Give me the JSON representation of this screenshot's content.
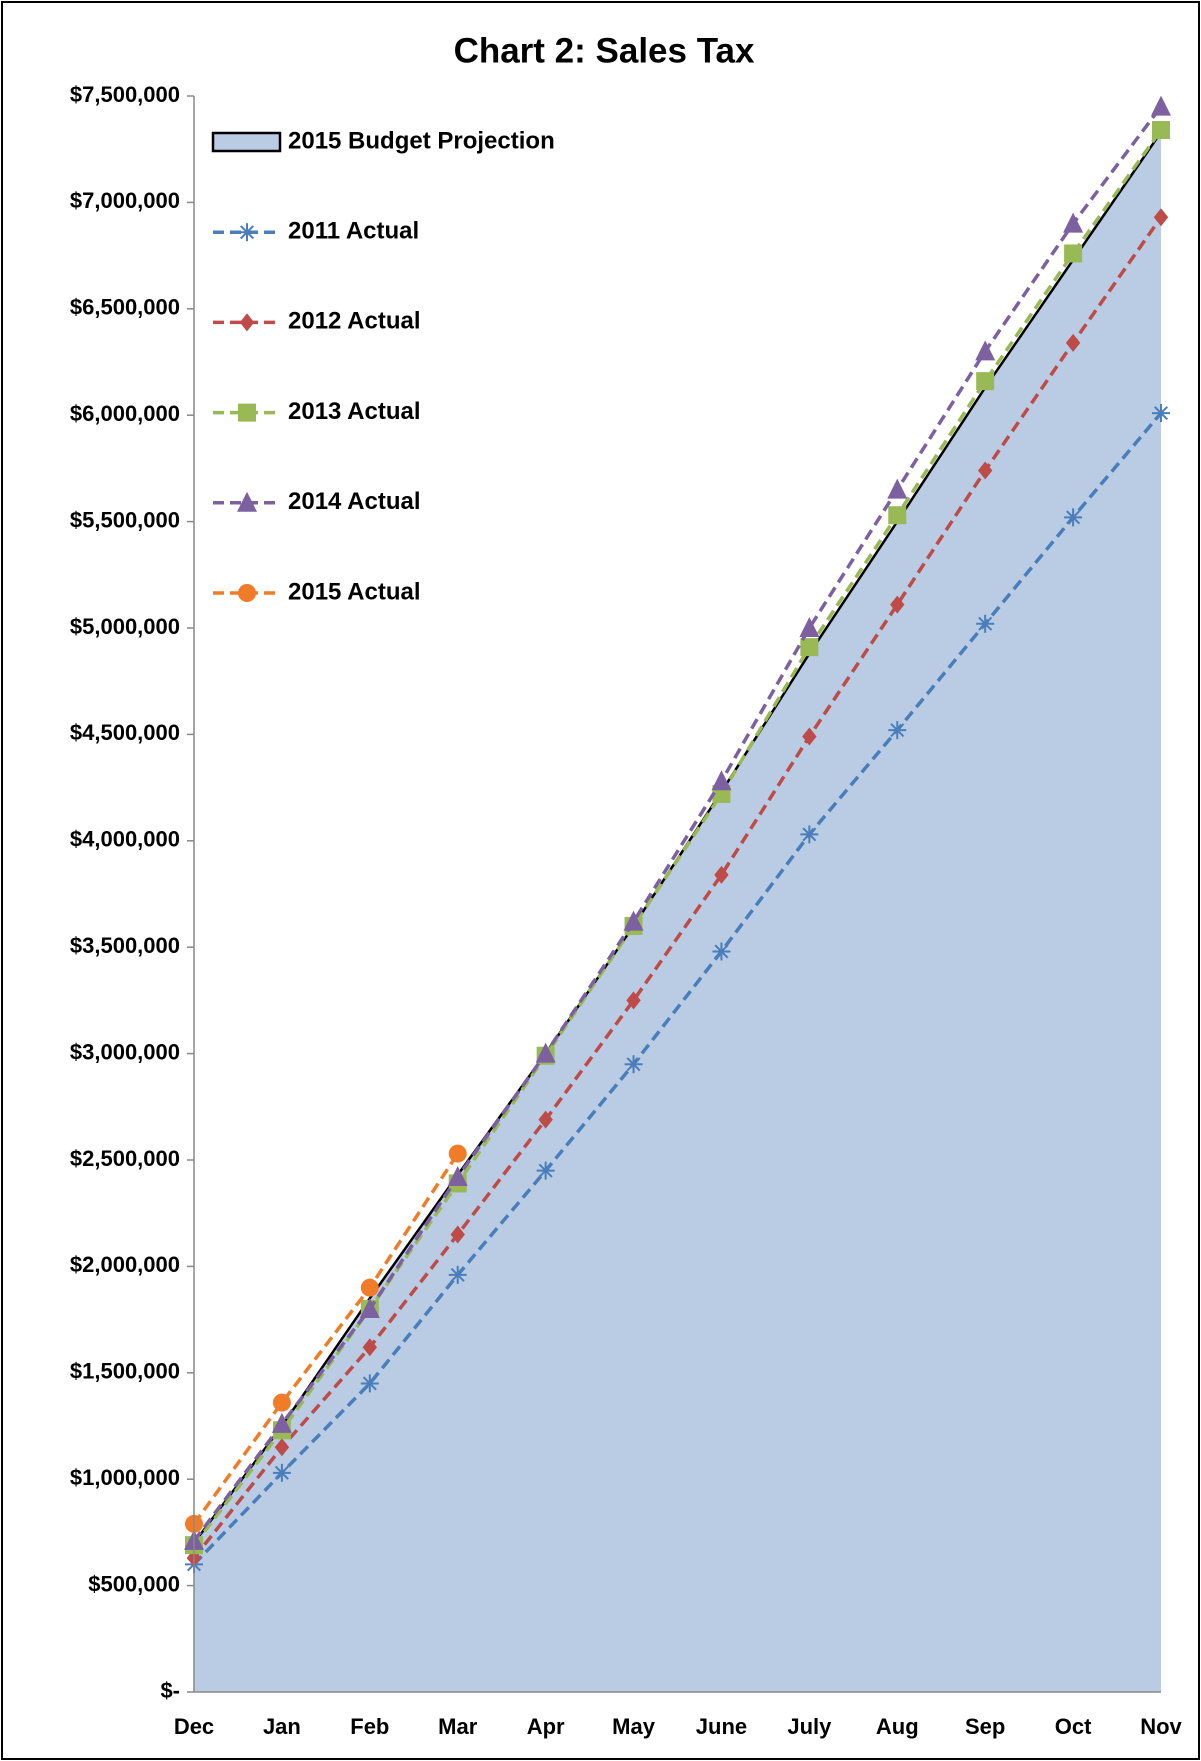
{
  "chart_data": {
    "type": "line",
    "title": "Chart 2: Sales Tax",
    "categories": [
      "Dec",
      "Jan",
      "Feb",
      "Mar",
      "Apr",
      "May",
      "June",
      "July",
      "Aug",
      "Sep",
      "Oct",
      "Nov"
    ],
    "series": [
      {
        "name": "2015 Budget Projection",
        "type": "area",
        "color": "#b9cce4",
        "values": [
          700000,
          1250000,
          1850000,
          2430000,
          3000000,
          3600000,
          4230000,
          4880000,
          5500000,
          6130000,
          6730000,
          7330000
        ]
      },
      {
        "name": "2011 Actual",
        "color": "#4a7ebb",
        "marker": "asterisk",
        "values": [
          600000,
          1030000,
          1450000,
          1960000,
          2450000,
          2950000,
          3480000,
          4030000,
          4520000,
          5020000,
          5520000,
          6010000
        ]
      },
      {
        "name": "2012 Actual",
        "color": "#be4b48",
        "marker": "diamond",
        "values": [
          630000,
          1150000,
          1620000,
          2150000,
          2690000,
          3250000,
          3840000,
          4490000,
          5110000,
          5740000,
          6340000,
          6930000
        ]
      },
      {
        "name": "2013 Actual",
        "color": "#98b954",
        "marker": "square",
        "values": [
          690000,
          1230000,
          1800000,
          2390000,
          2990000,
          3600000,
          4220000,
          4910000,
          5530000,
          6160000,
          6760000,
          7340000
        ]
      },
      {
        "name": "2014 Actual",
        "color": "#7d60a0",
        "marker": "triangle",
        "values": [
          710000,
          1260000,
          1800000,
          2420000,
          3000000,
          3620000,
          4280000,
          5000000,
          5650000,
          6300000,
          6900000,
          7450000
        ]
      },
      {
        "name": "2015 Actual",
        "color": "#f07c2a",
        "marker": "circle",
        "values": [
          790000,
          1360000,
          1900000,
          2530000,
          null,
          null,
          null,
          null,
          null,
          null,
          null,
          null
        ]
      }
    ],
    "ylim": [
      0,
      7500000
    ],
    "yticks": [
      {
        "value": 0,
        "label": "$-"
      },
      {
        "value": 500000,
        "label": "$500,000"
      },
      {
        "value": 1000000,
        "label": "$1,000,000"
      },
      {
        "value": 1500000,
        "label": "$1,500,000"
      },
      {
        "value": 2000000,
        "label": "$2,000,000"
      },
      {
        "value": 2500000,
        "label": "$2,500,000"
      },
      {
        "value": 3000000,
        "label": "$3,000,000"
      },
      {
        "value": 3500000,
        "label": "$3,500,000"
      },
      {
        "value": 4000000,
        "label": "$4,000,000"
      },
      {
        "value": 4500000,
        "label": "$4,500,000"
      },
      {
        "value": 5000000,
        "label": "$5,000,000"
      },
      {
        "value": 5500000,
        "label": "$5,500,000"
      },
      {
        "value": 6000000,
        "label": "$6,000,000"
      },
      {
        "value": 6500000,
        "label": "$6,500,000"
      },
      {
        "value": 7000000,
        "label": "$7,000,000"
      },
      {
        "value": 7500000,
        "label": "$7,500,000"
      }
    ],
    "grid": false,
    "legend": "upper left"
  }
}
